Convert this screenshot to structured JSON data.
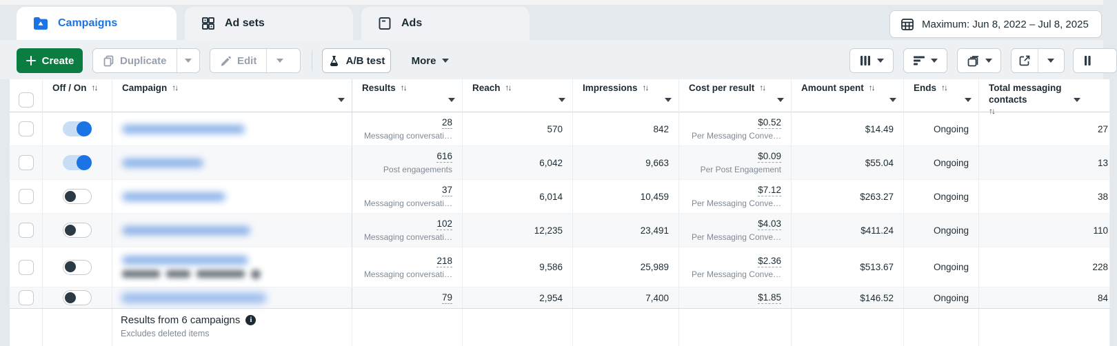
{
  "tabs": [
    {
      "label": "Campaigns",
      "icon": "campaigns-folder-icon",
      "active": true
    },
    {
      "label": "Ad sets",
      "icon": "ad-sets-grid-icon",
      "active": false
    },
    {
      "label": "Ads",
      "icon": "ads-page-icon",
      "active": false
    }
  ],
  "date_range": {
    "label": "Maximum: Jun 8, 2022 – Jul 8, 2025",
    "icon": "calendar-icon"
  },
  "toolbar": {
    "create_label": "Create",
    "duplicate_label": "Duplicate",
    "edit_label": "Edit",
    "ab_test_label": "A/B test",
    "more_label": "More",
    "right_icons": [
      "columns-icon",
      "breakdown-icon",
      "reports-icon",
      "export-icon",
      "clipped-edge-icon"
    ]
  },
  "table": {
    "columns": [
      {
        "label": "",
        "name": "select-all"
      },
      {
        "label": "Off / On",
        "sort": true,
        "caret": false
      },
      {
        "label": "Campaign",
        "sort": true,
        "caret": true
      },
      {
        "label": "Results",
        "sort": true,
        "caret": true
      },
      {
        "label": "Reach",
        "sort": true,
        "caret": true
      },
      {
        "label": "Impressions",
        "sort": true,
        "caret": true
      },
      {
        "label": "Cost per result",
        "sort": true,
        "caret": true
      },
      {
        "label": "Amount spent",
        "sort": true,
        "caret": true
      },
      {
        "label": "Ends",
        "sort": true,
        "caret": true
      },
      {
        "label": "Total messaging contacts",
        "sort": true,
        "caret": true
      }
    ],
    "rows": [
      {
        "toggle": "on",
        "name_redacted": true,
        "masked_name_width": 178,
        "results": "28",
        "results_type": "Messaging conversati…",
        "reach": "570",
        "impressions": "842",
        "cost_per_result": "$0.52",
        "cost_type": "Per Messaging Conve…",
        "amount_spent": "$14.49",
        "ends": "Ongoing",
        "total_messaging_contacts": "27",
        "chips": false,
        "highlight": false
      },
      {
        "toggle": "on",
        "name_redacted": true,
        "masked_name_width": 118,
        "results": "616",
        "results_type": "Post engagements",
        "reach": "6,042",
        "impressions": "9,663",
        "cost_per_result": "$0.09",
        "cost_type": "Per Post Engagement",
        "amount_spent": "$55.04",
        "ends": "Ongoing",
        "total_messaging_contacts": "13",
        "chips": false,
        "highlight": false
      },
      {
        "toggle": "off",
        "name_redacted": true,
        "masked_name_width": 150,
        "results": "37",
        "results_type": "Messaging conversati…",
        "reach": "6,014",
        "impressions": "10,459",
        "cost_per_result": "$7.12",
        "cost_type": "Per Messaging Conve…",
        "amount_spent": "$263.27",
        "ends": "Ongoing",
        "total_messaging_contacts": "38",
        "chips": false,
        "highlight": false
      },
      {
        "toggle": "off",
        "name_redacted": true,
        "masked_name_width": 186,
        "results": "102",
        "results_type": "Messaging conversati…",
        "reach": "12,235",
        "impressions": "23,491",
        "cost_per_result": "$4.03",
        "cost_type": "Per Messaging Conve…",
        "amount_spent": "$411.24",
        "ends": "Ongoing",
        "total_messaging_contacts": "110",
        "chips": false,
        "highlight": false
      },
      {
        "toggle": "off",
        "name_redacted": true,
        "masked_name_width": 183,
        "results": "218",
        "results_type": "Messaging conversati…",
        "reach": "9,586",
        "impressions": "25,989",
        "cost_per_result": "$2.36",
        "cost_type": "Per Messaging Conve…",
        "amount_spent": "$513.67",
        "ends": "Ongoing",
        "total_messaging_contacts": "228",
        "chips": true,
        "highlight": false
      },
      {
        "toggle": "off",
        "name_redacted": true,
        "masked_name_width": 208,
        "results": "79",
        "results_type": "",
        "reach": "2,954",
        "impressions": "7,400",
        "cost_per_result": "$1.85",
        "cost_type": "",
        "amount_spent": "$146.52",
        "ends": "Ongoing",
        "total_messaging_contacts": "84",
        "chips": false,
        "highlight": true
      }
    ],
    "summary": {
      "title": "Results from 6 campaigns",
      "info_icon": "info-icon",
      "subtitle": "Excludes deleted items"
    }
  },
  "colors": {
    "accent_blue": "#1b74e4",
    "create_green": "#0b7d41",
    "toggle_off_knob": "#2c3a46",
    "stripe": "#f7f8fa",
    "text_dark": "#1c2b33",
    "text_muted": "#7f8a94"
  }
}
